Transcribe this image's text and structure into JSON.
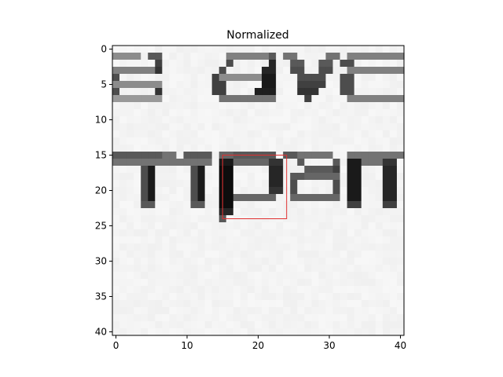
{
  "chart_data": {
    "type": "heatmap",
    "title": "Normalized",
    "xlabel": "",
    "ylabel": "",
    "width": 41,
    "height": 41,
    "xlim": [
      -0.5,
      40.5
    ],
    "ylim": [
      40.5,
      -0.5
    ],
    "x_ticks": [
      0,
      10,
      20,
      30,
      40
    ],
    "y_ticks": [
      0,
      5,
      10,
      15,
      20,
      25,
      30,
      35,
      40
    ],
    "colormap": "gray",
    "background_value": 0.97,
    "glyph_rows": [
      {
        "text": "a ave",
        "y_start": 0.9,
        "y_end": 8.4,
        "cells": [
          [
            0,
            1,
            4,
            0.55
          ],
          [
            5,
            1,
            2,
            0.35
          ],
          [
            6,
            2,
            1,
            0.25
          ],
          [
            0,
            3,
            6,
            0.5
          ],
          [
            6,
            3,
            1,
            0.2
          ],
          [
            0,
            4,
            1,
            0.3
          ],
          [
            0,
            5,
            7,
            0.55
          ],
          [
            0,
            6,
            1,
            0.3
          ],
          [
            6,
            6,
            1,
            0.2
          ],
          [
            0,
            7,
            7,
            0.6
          ],
          [
            16,
            1,
            6,
            0.5
          ],
          [
            22,
            1,
            1,
            0.35
          ],
          [
            16,
            2,
            1,
            0.3
          ],
          [
            22,
            2,
            1,
            0.15
          ],
          [
            15,
            3,
            1,
            0.3
          ],
          [
            21,
            3,
            2,
            0.15
          ],
          [
            14,
            4,
            1,
            0.25
          ],
          [
            15,
            4,
            6,
            0.55
          ],
          [
            21,
            4,
            2,
            0.1
          ],
          [
            14,
            5,
            2,
            0.25
          ],
          [
            21,
            5,
            2,
            0.1
          ],
          [
            14,
            6,
            2,
            0.25
          ],
          [
            20,
            6,
            3,
            0.12
          ],
          [
            15,
            7,
            8,
            0.45
          ],
          [
            24,
            1,
            2,
            0.45
          ],
          [
            30,
            1,
            2,
            0.45
          ],
          [
            25,
            2,
            2,
            0.35
          ],
          [
            29,
            2,
            2,
            0.35
          ],
          [
            25,
            3,
            2,
            0.3
          ],
          [
            29,
            3,
            2,
            0.3
          ],
          [
            26,
            4,
            2,
            0.3
          ],
          [
            28,
            4,
            2,
            0.3
          ],
          [
            26,
            5,
            2,
            0.25
          ],
          [
            28,
            5,
            2,
            0.25
          ],
          [
            26,
            6,
            3,
            0.2
          ],
          [
            27,
            7,
            1,
            0.25
          ],
          [
            33,
            1,
            8,
            0.5
          ],
          [
            32,
            2,
            2,
            0.3
          ],
          [
            33,
            3,
            8,
            0.5
          ],
          [
            32,
            4,
            2,
            0.3
          ],
          [
            32,
            5,
            2,
            0.3
          ],
          [
            32,
            6,
            2,
            0.3
          ],
          [
            33,
            7,
            8,
            0.5
          ]
        ]
      },
      {
        "text": "mpar",
        "y_start": 14.9,
        "y_end": 24.9,
        "cells": [
          [
            0,
            15,
            7,
            0.35
          ],
          [
            7,
            15,
            2,
            0.45
          ],
          [
            10,
            15,
            4,
            0.35
          ],
          [
            0,
            16,
            14,
            0.45
          ],
          [
            4,
            17,
            1,
            0.3
          ],
          [
            5,
            17,
            1,
            0.1
          ],
          [
            11,
            17,
            1,
            0.3
          ],
          [
            12,
            17,
            1,
            0.1
          ],
          [
            4,
            18,
            1,
            0.3
          ],
          [
            5,
            18,
            1,
            0.1
          ],
          [
            11,
            18,
            1,
            0.3
          ],
          [
            12,
            18,
            1,
            0.1
          ],
          [
            4,
            19,
            1,
            0.3
          ],
          [
            5,
            19,
            1,
            0.1
          ],
          [
            11,
            19,
            1,
            0.3
          ],
          [
            12,
            19,
            1,
            0.1
          ],
          [
            4,
            20,
            1,
            0.3
          ],
          [
            5,
            20,
            1,
            0.1
          ],
          [
            11,
            20,
            1,
            0.3
          ],
          [
            12,
            20,
            1,
            0.1
          ],
          [
            4,
            21,
            1,
            0.3
          ],
          [
            5,
            21,
            1,
            0.1
          ],
          [
            11,
            21,
            1,
            0.3
          ],
          [
            12,
            21,
            1,
            0.1
          ],
          [
            4,
            22,
            2,
            0.35
          ],
          [
            11,
            22,
            2,
            0.35
          ],
          [
            15,
            15,
            2,
            0.4
          ],
          [
            17,
            15,
            6,
            0.35
          ],
          [
            15,
            16,
            2,
            0.1
          ],
          [
            17,
            16,
            5,
            0.4
          ],
          [
            22,
            16,
            2,
            0.2
          ],
          [
            15,
            17,
            2,
            0.05
          ],
          [
            22,
            17,
            2,
            0.15
          ],
          [
            15,
            18,
            2,
            0.05
          ],
          [
            22,
            18,
            2,
            0.15
          ],
          [
            15,
            19,
            2,
            0.05
          ],
          [
            22,
            19,
            2,
            0.15
          ],
          [
            15,
            20,
            2,
            0.05
          ],
          [
            22,
            20,
            2,
            0.2
          ],
          [
            15,
            21,
            2,
            0.05
          ],
          [
            17,
            21,
            6,
            0.4
          ],
          [
            15,
            22,
            2,
            0.05
          ],
          [
            15,
            23,
            2,
            0.15
          ],
          [
            15,
            24,
            1,
            0.35
          ],
          [
            24,
            15,
            2,
            0.35
          ],
          [
            26,
            15,
            5,
            0.45
          ],
          [
            26,
            16,
            1,
            0.35
          ],
          [
            31,
            16,
            1,
            0.35
          ],
          [
            27,
            17,
            4,
            0.35
          ],
          [
            31,
            17,
            1,
            0.25
          ],
          [
            25,
            18,
            2,
            0.35
          ],
          [
            27,
            18,
            5,
            0.4
          ],
          [
            25,
            19,
            1,
            0.3
          ],
          [
            31,
            19,
            1,
            0.3
          ],
          [
            25,
            20,
            1,
            0.3
          ],
          [
            31,
            20,
            1,
            0.3
          ],
          [
            25,
            21,
            7,
            0.4
          ],
          [
            33,
            15,
            8,
            0.45
          ],
          [
            33,
            16,
            2,
            0.1
          ],
          [
            35,
            16,
            3,
            0.45
          ],
          [
            38,
            16,
            2,
            0.2
          ],
          [
            33,
            17,
            2,
            0.1
          ],
          [
            38,
            17,
            2,
            0.15
          ],
          [
            33,
            18,
            2,
            0.1
          ],
          [
            38,
            18,
            2,
            0.15
          ],
          [
            33,
            19,
            2,
            0.1
          ],
          [
            38,
            19,
            2,
            0.15
          ],
          [
            33,
            20,
            2,
            0.1
          ],
          [
            38,
            20,
            2,
            0.15
          ],
          [
            33,
            21,
            2,
            0.1
          ],
          [
            38,
            21,
            2,
            0.15
          ],
          [
            33,
            22,
            2,
            0.25
          ],
          [
            38,
            22,
            2,
            0.25
          ]
        ]
      }
    ],
    "annotation": {
      "type": "rectangle",
      "x0": 15,
      "y0": 15,
      "x1": 24,
      "y1": 24,
      "color": "#e03030"
    }
  }
}
